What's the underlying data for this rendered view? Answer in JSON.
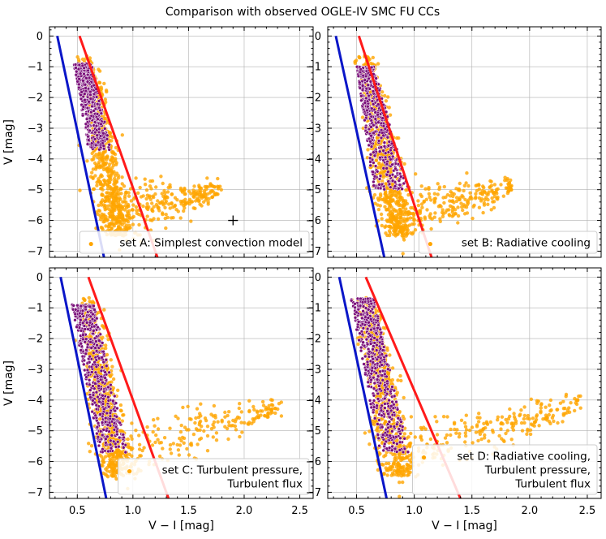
{
  "chart_data": {
    "type": "scatter",
    "title": "Comparison with observed OGLE-IV SMC FU CCs",
    "xlabel": "V − I [mag]",
    "ylabel": "V [mag]",
    "xlim": [
      0.25,
      2.62
    ],
    "ylim": [
      0.3,
      -7.2
    ],
    "xticks": [
      "0.5",
      "1.0",
      "1.5",
      "2.0",
      "2.5"
    ],
    "yticks": [
      "−7",
      "−6",
      "−5",
      "−4",
      "−3",
      "−2",
      "−1",
      "0"
    ],
    "colors": {
      "observed": "#ffa500",
      "model": "#7a0f7a",
      "blue_edge": "#0a16c8",
      "red_edge": "#ff1a1a"
    },
    "panels": [
      {
        "legend_lines": [
          "set A: Simplest convection model"
        ],
        "blue_edge": {
          "x": [
            0.32,
            0.74
          ],
          "y": [
            0.0,
            -7.2
          ]
        },
        "red_edge": {
          "x": [
            0.52,
            1.22
          ],
          "y": [
            0.0,
            -7.2
          ]
        },
        "model_region": {
          "v_range": [
            -0.9,
            -3.7
          ],
          "x_left_at_bottom": 0.47,
          "x_right_at_bottom": 0.63,
          "x_left_at_top": 0.6,
          "x_right_at_top": 0.8
        },
        "observed_tail": {
          "x_max": 1.8,
          "v_at_tail": -5.0
        },
        "error_bar_marker": {
          "x": 1.9,
          "y": -6.0
        }
      },
      {
        "legend_lines": [
          "set B: Radiative cooling"
        ],
        "blue_edge": {
          "x": [
            0.32,
            0.74
          ],
          "y": [
            0.0,
            -7.2
          ]
        },
        "red_edge": {
          "x": [
            0.52,
            1.15
          ],
          "y": [
            0.0,
            -7.2
          ]
        },
        "model_region": {
          "v_range": [
            -1.0,
            -5.0
          ],
          "x_left_at_bottom": 0.5,
          "x_right_at_bottom": 0.65,
          "x_left_at_top": 0.65,
          "x_right_at_top": 0.95
        },
        "observed_tail": {
          "x_max": 1.85,
          "v_at_tail": -4.9
        }
      },
      {
        "legend_lines": [
          "set C: Turbulent pressure,",
          "Turbulent flux"
        ],
        "blue_edge": {
          "x": [
            0.35,
            0.76
          ],
          "y": [
            0.0,
            -7.2
          ]
        },
        "red_edge": {
          "x": [
            0.6,
            1.32
          ],
          "y": [
            0.0,
            -7.2
          ]
        },
        "model_region": {
          "v_range": [
            -0.9,
            -5.7
          ],
          "x_left_at_bottom": 0.45,
          "x_right_at_bottom": 0.65,
          "x_left_at_top": 0.7,
          "x_right_at_top": 0.95
        },
        "observed_tail": {
          "x_max": 2.35,
          "v_at_tail": -4.15
        }
      },
      {
        "legend_lines": [
          "set D: Radiative cooling,",
          "Turbulent pressure,",
          "Turbulent flux"
        ],
        "blue_edge": {
          "x": [
            0.35,
            0.76
          ],
          "y": [
            0.0,
            -7.2
          ]
        },
        "red_edge": {
          "x": [
            0.58,
            1.4
          ],
          "y": [
            0.0,
            -7.2
          ]
        },
        "model_region": {
          "v_range": [
            -0.7,
            -5.7
          ],
          "x_left_at_bottom": 0.45,
          "x_right_at_bottom": 0.65,
          "x_left_at_top": 0.7,
          "x_right_at_top": 0.95
        },
        "observed_tail": {
          "x_max": 2.45,
          "v_at_tail": -4.05
        }
      }
    ]
  }
}
